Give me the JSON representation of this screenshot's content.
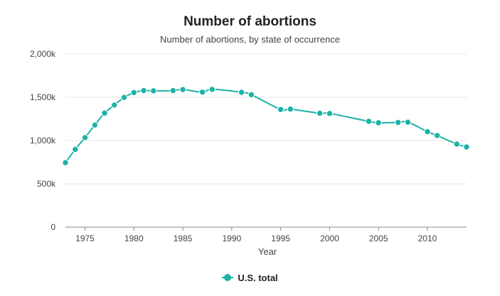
{
  "chart_data": {
    "type": "line",
    "title": "Number of abortions",
    "subtitle": "Number of abortions, by state of occurrence",
    "xlabel": "Year",
    "ylabel": "",
    "xlim": [
      1973,
      2014
    ],
    "ylim": [
      0,
      2000000
    ],
    "x_ticks": [
      1975,
      1980,
      1985,
      1990,
      1995,
      2000,
      2005,
      2010
    ],
    "y_ticks": [
      {
        "value": 0,
        "label": "0"
      },
      {
        "value": 500000,
        "label": "500k"
      },
      {
        "value": 1000000,
        "label": "1,000k"
      },
      {
        "value": 1500000,
        "label": "1,500k"
      },
      {
        "value": 2000000,
        "label": "2,000k"
      }
    ],
    "grid": "horizontal",
    "legend_position": "bottom-center",
    "series": [
      {
        "name": "U.S. total",
        "color": "#1ab3a6",
        "x": [
          1973,
          1974,
          1975,
          1976,
          1977,
          1978,
          1979,
          1980,
          1981,
          1982,
          1984,
          1985,
          1987,
          1988,
          1991,
          1992,
          1995,
          1996,
          1999,
          2000,
          2004,
          2005,
          2007,
          2008,
          2010,
          2011,
          2013,
          2014
        ],
        "y": [
          745000,
          898000,
          1034000,
          1179000,
          1317000,
          1410000,
          1498000,
          1554000,
          1577000,
          1574000,
          1577000,
          1589000,
          1559000,
          1591000,
          1557000,
          1529000,
          1359000,
          1363000,
          1315000,
          1313000,
          1222000,
          1206000,
          1209000,
          1212000,
          1103000,
          1058000,
          959000,
          926000
        ]
      }
    ]
  }
}
